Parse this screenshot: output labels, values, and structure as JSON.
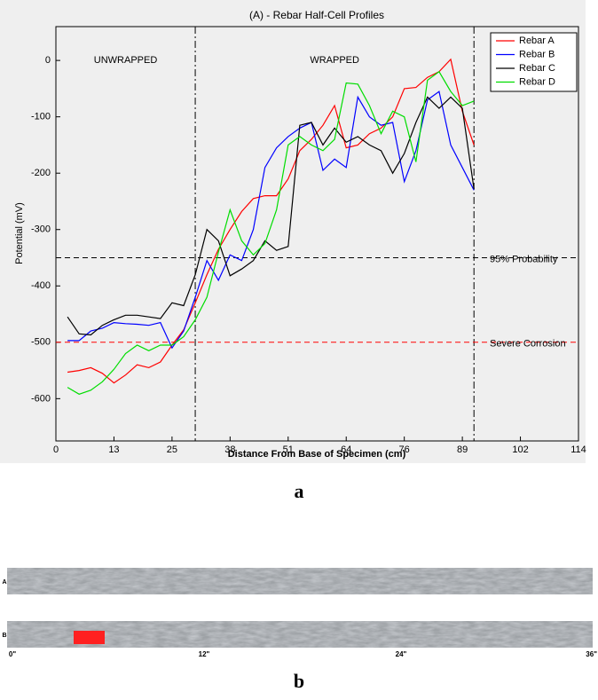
{
  "chart_data": {
    "type": "line",
    "title": "(A) - Rebar Half-Cell Profiles",
    "x_label": "Distance From Base of Specimen (cm)",
    "y_label": "Potential (mV)",
    "x": [
      2.54,
      5.08,
      7.62,
      10.16,
      12.7,
      15.24,
      17.78,
      20.32,
      22.86,
      25.4,
      27.94,
      30.48,
      33.02,
      35.56,
      38.1,
      40.64,
      43.18,
      45.72,
      48.26,
      50.8,
      53.34,
      55.88,
      58.42,
      60.96,
      63.5,
      66.04,
      68.58,
      71.12,
      73.66,
      76.2,
      78.74,
      81.28,
      83.82,
      86.36,
      88.9,
      91.44
    ],
    "series": [
      {
        "name": "Rebar A",
        "color": "#ff0000",
        "values": [
          -553,
          -550,
          -545,
          -555,
          -572,
          -558,
          -540,
          -545,
          -535,
          -505,
          -478,
          -430,
          -380,
          -335,
          -300,
          -268,
          -245,
          -240,
          -240,
          -210,
          -160,
          -140,
          -115,
          -80,
          -155,
          -150,
          -130,
          -120,
          -100,
          -50,
          -48,
          -30,
          -20,
          2,
          -90,
          -150
        ]
      },
      {
        "name": "Rebar B",
        "color": "#0000ff",
        "values": [
          -497,
          -497,
          -480,
          -475,
          -465,
          -467,
          -468,
          -470,
          -465,
          -510,
          -480,
          -420,
          -355,
          -390,
          -345,
          -355,
          -300,
          -190,
          -155,
          -135,
          -120,
          -110,
          -195,
          -175,
          -190,
          -65,
          -100,
          -115,
          -110,
          -215,
          -160,
          -70,
          -55,
          -150,
          -190,
          -230
        ]
      },
      {
        "name": "Rebar C",
        "color": "#000000",
        "values": [
          -455,
          -485,
          -487,
          -470,
          -460,
          -452,
          -452,
          -455,
          -458,
          -430,
          -435,
          -380,
          -300,
          -320,
          -382,
          -370,
          -355,
          -320,
          -337,
          -330,
          -115,
          -110,
          -150,
          -120,
          -145,
          -135,
          -150,
          -160,
          -200,
          -165,
          -110,
          -65,
          -85,
          -65,
          -85,
          -228
        ]
      },
      {
        "name": "Rebar D",
        "color": "#00dd00",
        "values": [
          -580,
          -592,
          -585,
          -570,
          -548,
          -520,
          -505,
          -515,
          -505,
          -505,
          -490,
          -460,
          -420,
          -340,
          -265,
          -320,
          -345,
          -325,
          -265,
          -150,
          -135,
          -150,
          -160,
          -140,
          -40,
          -42,
          -80,
          -130,
          -90,
          -100,
          -180,
          -35,
          -20,
          -55,
          -80,
          -72
        ]
      }
    ],
    "xlim": [
      0,
      114.3
    ],
    "xticks": [
      0,
      {
        "value": 12.7,
        "label": "13"
      },
      {
        "value": 25.4,
        "label": "25"
      },
      {
        "value": 38.1,
        "label": "38"
      },
      {
        "value": 50.8,
        "label": "51"
      },
      {
        "value": 63.5,
        "label": "64"
      },
      {
        "value": 76.2,
        "label": "76"
      },
      {
        "value": 88.9,
        "label": "89"
      },
      {
        "value": 101.6,
        "label": "102"
      },
      {
        "value": 114.3,
        "label": "114"
      }
    ],
    "ylim": [
      -675,
      60
    ],
    "yticks": [
      -600,
      -500,
      -400,
      -300,
      -200,
      -100,
      0
    ],
    "vlines": [
      30.48,
      91.44
    ],
    "hlines": [
      {
        "value": -350,
        "label": "95% Probability",
        "color": "#000000"
      },
      {
        "value": -500,
        "label": "Severe Corrosion",
        "color": "#ff0000"
      }
    ],
    "annotations": [
      "UNWRAPPED",
      "WRAPPED"
    ],
    "legend": "upper right"
  },
  "captions": [
    "a",
    "b"
  ],
  "photo": {
    "strip_labels": [
      "A",
      "B"
    ],
    "scale_labels": [
      "0\"",
      "12\"",
      "24\"",
      "36\""
    ]
  }
}
